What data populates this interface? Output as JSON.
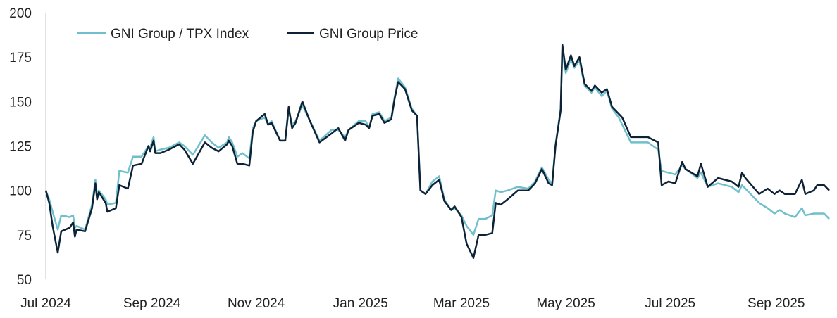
{
  "chart_data": {
    "type": "line",
    "title": "",
    "xlabel": "",
    "ylabel": "",
    "ylim": [
      50,
      200
    ],
    "yticks": [
      "50",
      "75",
      "100",
      "125",
      "150",
      "175",
      "200"
    ],
    "xlim": [
      "2024-07-01",
      "2025-10-02"
    ],
    "xticks": [
      {
        "date": "2024-07-01",
        "label": "Jul 2024"
      },
      {
        "date": "2024-09-01",
        "label": "Sep 2024"
      },
      {
        "date": "2024-11-01",
        "label": "Nov 2024"
      },
      {
        "date": "2025-01-01",
        "label": "Jan 2025"
      },
      {
        "date": "2025-03-01",
        "label": "Mar 2025"
      },
      {
        "date": "2025-05-01",
        "label": "May 2025"
      },
      {
        "date": "2025-07-01",
        "label": "Jul 2025"
      },
      {
        "date": "2025-09-01",
        "label": "Sep 2025"
      }
    ],
    "grid": false,
    "legend_position": "top-left",
    "x": [
      "2024-07-01",
      "2024-07-03",
      "2024-07-05",
      "2024-07-08",
      "2024-07-10",
      "2024-07-15",
      "2024-07-17",
      "2024-07-18",
      "2024-07-19",
      "2024-07-24",
      "2024-07-28",
      "2024-07-30",
      "2024-07-31",
      "2024-08-01",
      "2024-08-05",
      "2024-08-06",
      "2024-08-11",
      "2024-08-13",
      "2024-08-18",
      "2024-08-21",
      "2024-08-26",
      "2024-08-30",
      "2024-08-31",
      "2024-09-02",
      "2024-09-03",
      "2024-09-06",
      "2024-09-11",
      "2024-09-17",
      "2024-09-20",
      "2024-09-25",
      "2024-10-02",
      "2024-10-06",
      "2024-10-10",
      "2024-10-15",
      "2024-10-16",
      "2024-10-18",
      "2024-10-21",
      "2024-10-24",
      "2024-10-28",
      "2024-10-30",
      "2024-11-01",
      "2024-11-06",
      "2024-11-08",
      "2024-11-10",
      "2024-11-15",
      "2024-11-18",
      "2024-11-20",
      "2024-11-22",
      "2024-11-24",
      "2024-11-28",
      "2024-12-02",
      "2024-12-08",
      "2024-12-15",
      "2024-12-19",
      "2024-12-23",
      "2024-12-25",
      "2024-12-31",
      "2025-01-04",
      "2025-01-06",
      "2025-01-08",
      "2025-01-12",
      "2025-01-15",
      "2025-01-19",
      "2025-01-21",
      "2025-01-23",
      "2025-01-27",
      "2025-01-31",
      "2025-02-03",
      "2025-02-05",
      "2025-02-08",
      "2025-02-12",
      "2025-02-16",
      "2025-02-19",
      "2025-02-23",
      "2025-02-25",
      "2025-03-01",
      "2025-03-04",
      "2025-03-08",
      "2025-03-11",
      "2025-03-15",
      "2025-03-19",
      "2025-03-21",
      "2025-03-24",
      "2025-03-28",
      "2025-04-03",
      "2025-04-09",
      "2025-04-13",
      "2025-04-17",
      "2025-04-21",
      "2025-04-23",
      "2025-04-25",
      "2025-04-28",
      "2025-04-29",
      "2025-05-01",
      "2025-05-04",
      "2025-05-06",
      "2025-05-09",
      "2025-05-12",
      "2025-05-16",
      "2025-05-18",
      "2025-05-22",
      "2025-05-25",
      "2025-05-28",
      "2025-06-01",
      "2025-06-03",
      "2025-06-08",
      "2025-06-14",
      "2025-06-18",
      "2025-06-24",
      "2025-06-26",
      "2025-06-30",
      "2025-07-04",
      "2025-07-08",
      "2025-07-10",
      "2025-07-17",
      "2025-07-19",
      "2025-07-23",
      "2025-07-29",
      "2025-08-06",
      "2025-08-10",
      "2025-08-12",
      "2025-08-14",
      "2025-08-22",
      "2025-08-27",
      "2025-08-31",
      "2025-09-03",
      "2025-09-06",
      "2025-09-12",
      "2025-09-16",
      "2025-09-18",
      "2025-09-23",
      "2025-09-25",
      "2025-09-29",
      "2025-10-02"
    ],
    "series": [
      {
        "name": "GNI Group / TPX Index",
        "color": "#6fc0cc",
        "values": [
          100,
          95,
          88,
          78,
          86,
          85,
          86,
          79,
          80,
          78,
          92,
          106,
          97,
          100,
          95,
          92,
          93,
          111,
          110,
          119,
          119,
          125,
          124,
          130,
          122,
          123,
          124,
          127,
          125,
          120,
          131,
          127,
          124,
          127,
          130,
          127,
          119,
          121,
          118,
          135,
          139,
          141,
          137,
          139,
          128,
          128,
          145,
          137,
          139,
          148,
          140,
          128,
          134,
          134,
          130,
          134,
          139,
          139,
          135,
          143,
          144,
          139,
          141,
          153,
          163,
          158,
          146,
          142,
          100,
          98,
          105,
          108,
          95,
          89,
          90,
          86,
          80,
          75,
          84,
          84,
          86,
          100,
          99,
          100,
          102,
          101,
          105,
          113,
          106,
          104,
          126,
          146,
          178,
          166,
          174,
          169,
          173,
          159,
          155,
          158,
          153,
          156,
          146,
          141,
          137,
          127,
          127,
          127,
          123,
          111,
          110,
          109,
          114,
          112,
          107,
          110,
          102,
          104,
          102,
          99,
          103,
          101,
          93,
          90,
          87,
          89,
          87,
          85,
          90,
          86,
          87,
          87,
          87,
          84
        ]
      },
      {
        "name": "GNI Group Price",
        "color": "#0d2236",
        "values": [
          100,
          93,
          80,
          65,
          77,
          79,
          82,
          74,
          78,
          77,
          90,
          104,
          95,
          99,
          93,
          88,
          90,
          103,
          101,
          114,
          115,
          125,
          122,
          128,
          121,
          121,
          123,
          126,
          123,
          115,
          127,
          124,
          122,
          126,
          128,
          125,
          115,
          115,
          114,
          133,
          139,
          143,
          137,
          138,
          128,
          128,
          147,
          135,
          138,
          150,
          140,
          127,
          132,
          135,
          128,
          134,
          138,
          137,
          135,
          142,
          143,
          138,
          140,
          152,
          161,
          157,
          145,
          142,
          100,
          98,
          103,
          106,
          94,
          89,
          91,
          85,
          70,
          62,
          75,
          75,
          76,
          93,
          92,
          95,
          100,
          100,
          104,
          112,
          104,
          103,
          125,
          145,
          182,
          168,
          176,
          170,
          175,
          160,
          156,
          159,
          155,
          157,
          147,
          143,
          141,
          130,
          130,
          130,
          127,
          103,
          105,
          104,
          116,
          112,
          108,
          115,
          102,
          107,
          105,
          102,
          110,
          107,
          98,
          101,
          98,
          100,
          98,
          98,
          106,
          98,
          100,
          103,
          103,
          100
        ]
      }
    ]
  }
}
